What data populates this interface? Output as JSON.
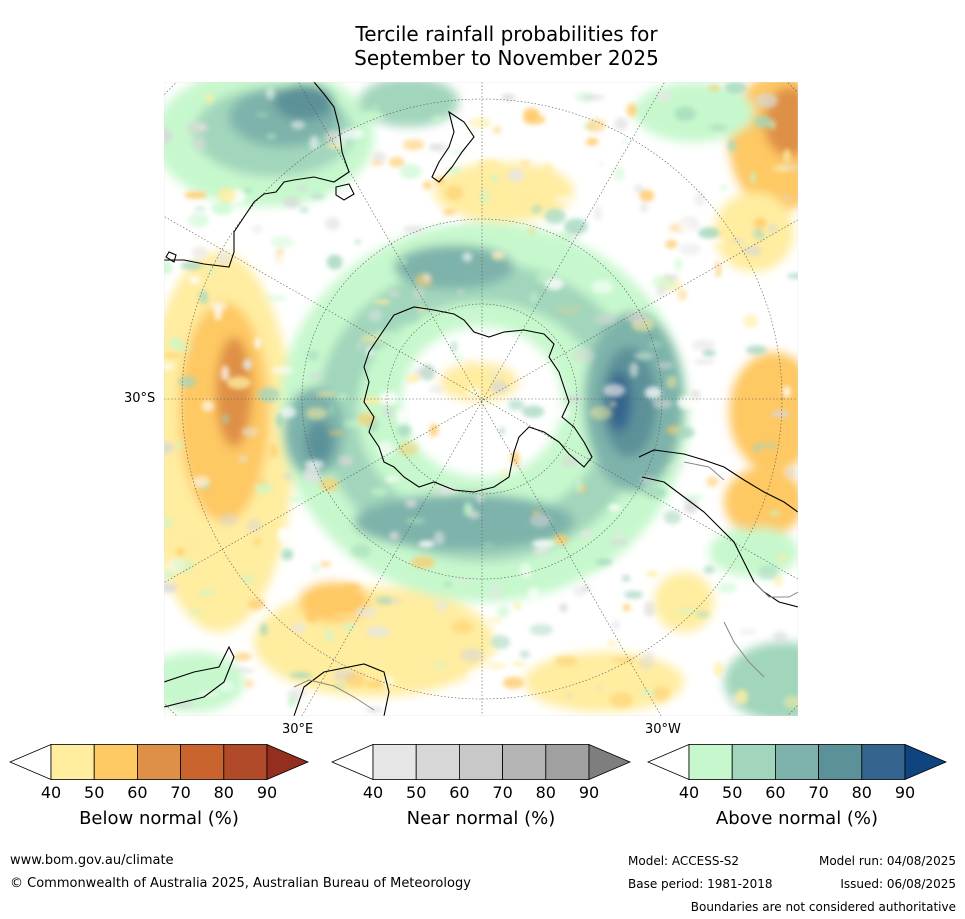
{
  "title": {
    "line1": "Tercile rainfall probabilities for",
    "line2": "September to November 2025"
  },
  "map": {
    "lat_label": "30°S",
    "lon_label_left": "30°E",
    "lon_label_right": "30°W"
  },
  "legends": [
    {
      "id": "below",
      "label": "Below normal (%)",
      "ticks": [
        "40",
        "50",
        "60",
        "70",
        "80",
        "90"
      ],
      "colors": [
        "#ffffff",
        "#ffeda0",
        "#fec863",
        "#df9047",
        "#c9642f",
        "#b04a28",
        "#942f1f"
      ]
    },
    {
      "id": "near",
      "label": "Near normal (%)",
      "ticks": [
        "40",
        "50",
        "60",
        "70",
        "80",
        "90"
      ],
      "colors": [
        "#ffffff",
        "#e6e6e6",
        "#d7d7d7",
        "#c8c8c8",
        "#b4b4b4",
        "#a0a0a0",
        "#7e7e7e"
      ]
    },
    {
      "id": "above",
      "label": "Above normal (%)",
      "ticks": [
        "40",
        "50",
        "60",
        "70",
        "80",
        "90"
      ],
      "colors": [
        "#ffffff",
        "#c7f8cd",
        "#a2d6bc",
        "#7eb3ab",
        "#5b9199",
        "#34658f",
        "#10447f"
      ]
    }
  ],
  "footer": {
    "website": "www.bom.gov.au/climate",
    "copyright": "© Commonwealth of Australia 2025, Australian Bureau of Meteorology",
    "model": "Model: ACCESS-S2",
    "model_run": "Model run: 04/08/2025",
    "base_period": "Base period: 1981-2018",
    "issued": "Issued: 06/08/2025",
    "disclaimer": "Boundaries are not considered authoritative"
  }
}
